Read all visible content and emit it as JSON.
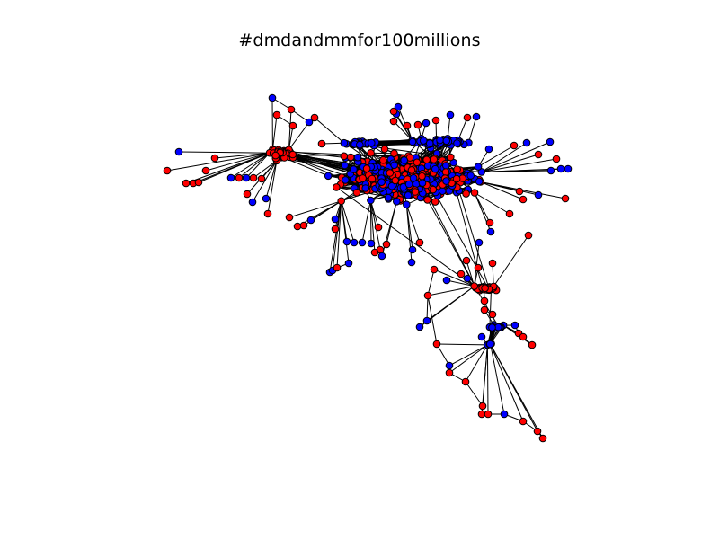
{
  "figure": {
    "title": "#dmdandmmfor100millions"
  },
  "graph": {
    "node_colors": {
      "red": "#ff0000",
      "blue": "#0000ff"
    },
    "node_outline": "#000000",
    "edge_color": "#000000",
    "background": "#ffffff"
  }
}
